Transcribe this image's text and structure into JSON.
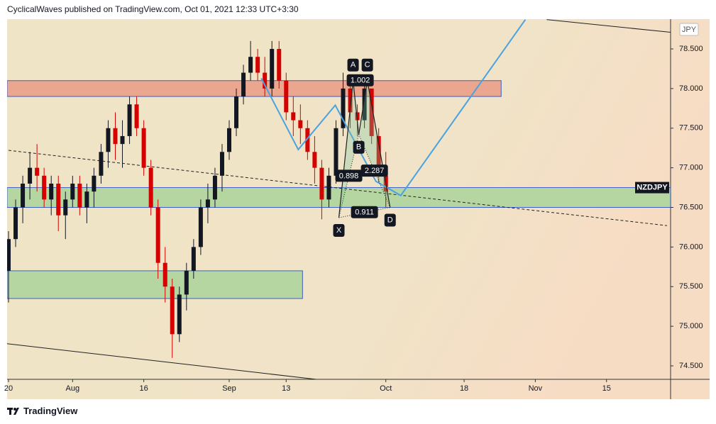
{
  "header": "CyclicalWaves published on TradingView.com, Oct 01, 2021 12:33 UTC+3:30",
  "footer": "TradingView",
  "chart_data": {
    "type": "candlestick",
    "symbol": "NZDJPY",
    "currency": "JPY",
    "last_price": 76.75,
    "up_color": "#131722",
    "down_color": "#d50000",
    "xlim": [
      -0.2,
      93.0
    ],
    "ylim": [
      74.33,
      78.876
    ],
    "xticks": [
      {
        "value": 0,
        "label": "20"
      },
      {
        "value": 9,
        "label": "Aug"
      },
      {
        "value": 19,
        "label": "16"
      },
      {
        "value": 31,
        "label": "Sep"
      },
      {
        "value": 39,
        "label": "13"
      },
      {
        "value": 53,
        "label": "Oct"
      },
      {
        "value": 64,
        "label": "18"
      },
      {
        "value": 74,
        "label": "Nov"
      },
      {
        "value": 84,
        "label": "15"
      }
    ],
    "yticks": [
      {
        "value": 74.5,
        "label": "74.500"
      },
      {
        "value": 75,
        "label": "75.000"
      },
      {
        "value": 75.5,
        "label": "75.500"
      },
      {
        "value": 76,
        "label": "76.000"
      },
      {
        "value": 76.5,
        "label": "76.500"
      },
      {
        "value": 77,
        "label": "77.000"
      },
      {
        "value": 77.5,
        "label": "77.500"
      },
      {
        "value": 78,
        "label": "78.000"
      },
      {
        "value": 78.5,
        "label": "78.500"
      }
    ],
    "candles": [
      [
        75.7,
        76.2,
        75.3,
        76.1
      ],
      [
        76.1,
        76.6,
        76.0,
        76.5
      ],
      [
        76.5,
        76.9,
        76.3,
        76.8
      ],
      [
        76.8,
        77.2,
        76.6,
        77.0
      ],
      [
        77.0,
        77.3,
        76.7,
        76.9
      ],
      [
        76.9,
        77.0,
        76.5,
        76.6
      ],
      [
        76.6,
        76.9,
        76.4,
        76.8
      ],
      [
        76.8,
        76.9,
        76.2,
        76.4
      ],
      [
        76.4,
        76.7,
        76.1,
        76.6
      ],
      [
        76.6,
        76.9,
        76.5,
        76.8
      ],
      [
        76.8,
        76.9,
        76.4,
        76.5
      ],
      [
        76.5,
        76.8,
        76.3,
        76.7
      ],
      [
        76.7,
        77.0,
        76.5,
        76.9
      ],
      [
        76.9,
        77.3,
        76.8,
        77.2
      ],
      [
        77.2,
        77.6,
        77.0,
        77.5
      ],
      [
        77.5,
        77.7,
        77.1,
        77.3
      ],
      [
        77.3,
        77.6,
        77.0,
        77.4
      ],
      [
        77.4,
        77.9,
        77.3,
        77.8
      ],
      [
        77.8,
        77.9,
        77.4,
        77.5
      ],
      [
        77.5,
        77.6,
        76.9,
        77.0
      ],
      [
        77.0,
        77.1,
        76.4,
        76.5
      ],
      [
        76.5,
        76.6,
        75.6,
        75.8
      ],
      [
        75.8,
        76.0,
        75.3,
        75.5
      ],
      [
        75.5,
        75.6,
        74.6,
        74.9
      ],
      [
        74.9,
        75.5,
        74.8,
        75.4
      ],
      [
        75.4,
        75.8,
        75.2,
        75.7
      ],
      [
        75.7,
        76.1,
        75.6,
        76.0
      ],
      [
        76.0,
        76.6,
        75.9,
        76.5
      ],
      [
        76.5,
        76.8,
        76.3,
        76.6
      ],
      [
        76.6,
        77.0,
        76.5,
        76.9
      ],
      [
        76.9,
        77.3,
        76.7,
        77.2
      ],
      [
        77.2,
        77.6,
        77.1,
        77.5
      ],
      [
        77.5,
        78.0,
        77.4,
        77.9
      ],
      [
        77.9,
        78.3,
        77.8,
        78.2
      ],
      [
        78.2,
        78.6,
        78.1,
        78.4
      ],
      [
        78.4,
        78.5,
        78.1,
        78.2
      ],
      [
        78.2,
        78.4,
        77.9,
        78.0
      ],
      [
        78.0,
        78.6,
        77.9,
        78.5
      ],
      [
        78.5,
        78.6,
        78.0,
        78.1
      ],
      [
        78.1,
        78.2,
        77.6,
        77.7
      ],
      [
        77.7,
        77.9,
        77.4,
        77.6
      ],
      [
        77.6,
        77.8,
        77.3,
        77.5
      ],
      [
        77.5,
        77.6,
        77.1,
        77.2
      ],
      [
        77.2,
        77.4,
        76.8,
        77.0
      ],
      [
        77.0,
        77.1,
        76.35,
        76.6
      ],
      [
        76.6,
        77.0,
        76.5,
        76.9
      ],
      [
        76.9,
        77.6,
        76.8,
        77.5
      ],
      [
        77.5,
        78.2,
        77.4,
        78.0
      ],
      [
        78.0,
        78.1,
        77.5,
        77.7
      ],
      [
        77.7,
        77.8,
        77.4,
        77.6
      ],
      [
        77.6,
        78.1,
        77.5,
        78.0
      ],
      [
        78.0,
        78.0,
        77.3,
        77.4
      ],
      [
        77.4,
        77.5,
        76.8,
        76.9
      ],
      [
        76.9,
        77.2,
        76.5,
        76.7
      ]
    ],
    "zones": [
      {
        "from": -0.2,
        "to": 69.2,
        "low": 77.9,
        "high": 78.1,
        "color": "#eba68f"
      },
      {
        "from": -0.2,
        "to": 93.0,
        "low": 76.5,
        "high": 76.75,
        "color": "#b5d6a0"
      },
      {
        "from": -0.2,
        "to": 41.3,
        "low": 75.35,
        "high": 75.7,
        "color": "#b5d6a0"
      }
    ],
    "trendlines": [
      {
        "points": [
          [
            0,
            77.22
          ],
          [
            92.5,
            76.27
          ]
        ],
        "color": "#222222",
        "dashed": true
      },
      {
        "points": [
          [
            75.6,
            78.87
          ],
          [
            93,
            78.71
          ]
        ],
        "color": "#222222",
        "dashed": false
      },
      {
        "points": [
          [
            -0.2,
            74.78
          ],
          [
            43.2,
            74.33
          ]
        ],
        "color": "#222222",
        "dashed": false
      }
    ],
    "projection": {
      "color": "#4aa3e0",
      "points": [
        [
          35.5,
          78.13
        ],
        [
          40.7,
          77.23
        ],
        [
          45.9,
          77.79
        ],
        [
          51.6,
          76.83
        ],
        [
          55.1,
          76.65
        ],
        [
          72.6,
          78.87
        ]
      ]
    },
    "pattern": {
      "points": [
        {
          "label": "X",
          "x": 46.4,
          "y": 76.37
        },
        {
          "label": "A",
          "x": 48.4,
          "y": 78.1
        },
        {
          "label": "B",
          "x": 49.2,
          "y": 77.42
        },
        {
          "label": "C",
          "x": 50.4,
          "y": 78.1
        },
        {
          "label": "D",
          "x": 53.6,
          "y": 76.5
        }
      ],
      "ratios": [
        {
          "from": 1,
          "to": 3,
          "value": 1.002
        },
        {
          "from": 0,
          "to": 2,
          "value": 0.898
        },
        {
          "from": 2,
          "to": 4,
          "value": 2.287
        },
        {
          "from": 0,
          "to": 4,
          "value": 0.911
        }
      ]
    }
  }
}
